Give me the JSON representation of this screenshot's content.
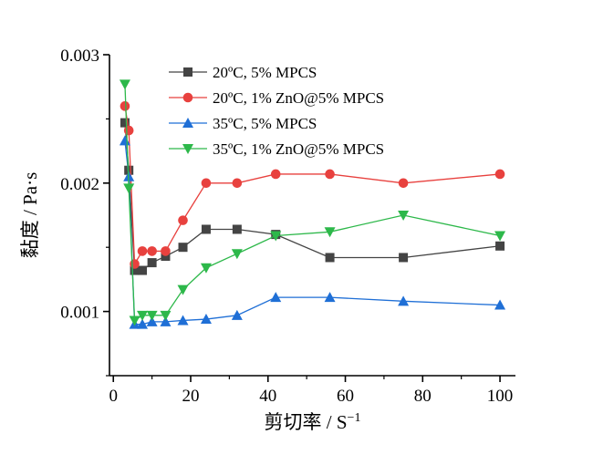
{
  "chart_data": {
    "type": "line",
    "xlabel": "剪切率 / S",
    "xlabel_superscript": "−1",
    "ylabel": "黏度 / Pa·s",
    "xlim": [
      -1,
      104
    ],
    "ylim": [
      0.0005,
      0.003
    ],
    "xticks": [
      0,
      20,
      40,
      60,
      80,
      100
    ],
    "yticks": [
      0.001,
      0.002,
      0.003
    ],
    "xtick_labels": [
      "0",
      "20",
      "40",
      "60",
      "80",
      "100"
    ],
    "ytick_labels": [
      "0.001",
      "0.002",
      "0.003"
    ],
    "legend_position": "top-right",
    "series": [
      {
        "name": "20ºC, 5% MPCS",
        "color": "#444444",
        "marker": "square",
        "x": [
          3,
          4,
          5.5,
          7.5,
          10,
          13.5,
          18,
          24,
          32,
          42,
          56,
          75,
          100
        ],
        "y": [
          0.00247,
          0.0021,
          0.00132,
          0.00132,
          0.00138,
          0.00143,
          0.0015,
          0.00164,
          0.00164,
          0.0016,
          0.00142,
          0.00142,
          0.00151
        ]
      },
      {
        "name": "20ºC, 1% ZnO@5% MPCS",
        "color": "#e8413e",
        "marker": "circle",
        "x": [
          3,
          4,
          5.5,
          7.5,
          10,
          13.5,
          18,
          24,
          32,
          42,
          56,
          75,
          100
        ],
        "y": [
          0.0026,
          0.00241,
          0.00137,
          0.00147,
          0.00147,
          0.00147,
          0.00171,
          0.002,
          0.002,
          0.00207,
          0.00207,
          0.002,
          0.00207
        ]
      },
      {
        "name": "35ºC, 5% MPCS",
        "color": "#1f6fd6",
        "marker": "triangle-up",
        "x": [
          3,
          4,
          5.5,
          7.5,
          10,
          13.5,
          18,
          24,
          32,
          42,
          56,
          75,
          100
        ],
        "y": [
          0.00233,
          0.00205,
          0.0009,
          0.0009,
          0.00092,
          0.00092,
          0.00093,
          0.00094,
          0.00097,
          0.00111,
          0.00111,
          0.00108,
          0.00105
        ]
      },
      {
        "name": "35ºC, 1% ZnO@5% MPCS",
        "color": "#2db84a",
        "marker": "triangle-down",
        "x": [
          3,
          4,
          5.5,
          7.5,
          10,
          13.5,
          18,
          24,
          32,
          42,
          56,
          75,
          100
        ],
        "y": [
          0.00277,
          0.00196,
          0.00093,
          0.00097,
          0.00097,
          0.00097,
          0.00117,
          0.00134,
          0.00145,
          0.00159,
          0.00162,
          0.00175,
          0.00159
        ]
      }
    ]
  }
}
